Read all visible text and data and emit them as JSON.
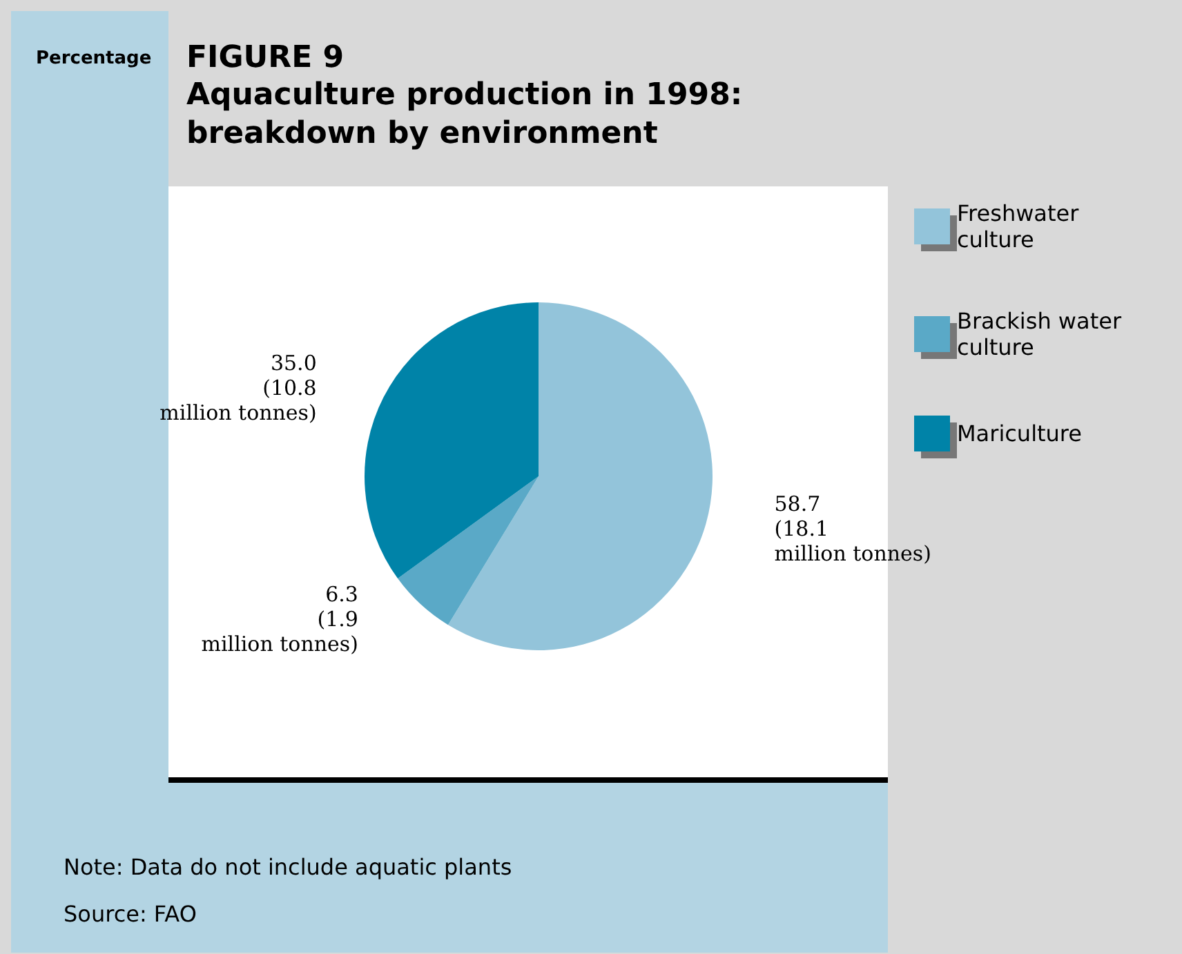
{
  "chart_data": {
    "type": "pie",
    "title": "FIGURE 9",
    "subtitle": "Aquaculture production in 1998:\nbreakdown by environment",
    "categories": [
      "Freshwater culture",
      "Brackish water culture",
      "Mariculture"
    ],
    "values": [
      58.7,
      6.3,
      35.0
    ],
    "colors": [
      "#93c4da",
      "#5aa9c7",
      "#0083a8"
    ],
    "value_labels": [
      "58.7\n(18.1\nmillion tonnes)",
      "6.3\n(1.9\nmillion tonnes)",
      "35.0\n(10.8\nmillion tonnes)"
    ],
    "legend": "right",
    "annotations": [
      "Percentage",
      "Note: Data do not include aquatic plants",
      "Source: FAO"
    ]
  }
}
